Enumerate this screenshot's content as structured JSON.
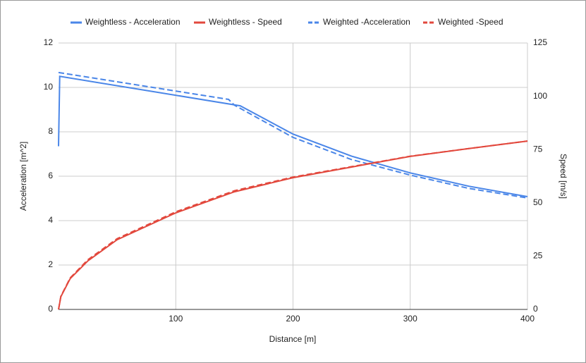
{
  "chart_data": {
    "type": "line",
    "x_label": "Distance [m]",
    "y_label": "Acceleration [m^2]",
    "y2_label": "Speed [m/s]",
    "xlim": [
      0,
      400
    ],
    "xticks": [
      100,
      200,
      300,
      400
    ],
    "ylim": [
      0,
      12
    ],
    "yticks": [
      0,
      2,
      4,
      6,
      8,
      10,
      12
    ],
    "y2lim": [
      0,
      125
    ],
    "y2ticks": [
      0,
      25,
      50,
      75,
      100,
      125
    ],
    "grid": true,
    "legend": "top",
    "series": [
      {
        "name": "Weightless - Acceleration",
        "color": "#4a86e8",
        "dash": false,
        "x": [
          0,
          1,
          155,
          200,
          250,
          300,
          350,
          400
        ],
        "values": [
          7.35,
          10.5,
          9.17,
          7.9,
          6.9,
          6.15,
          5.55,
          5.08
        ]
      },
      {
        "name": "Weightless - Speed",
        "color": "#e2483d",
        "dash": false,
        "axis": "y2",
        "x": [
          0,
          2,
          10,
          25,
          50,
          100,
          150,
          200,
          250,
          300,
          350,
          400
        ],
        "values": [
          0,
          6,
          14.5,
          22.8,
          32.7,
          45.3,
          55.2,
          61.8,
          66.8,
          71.8,
          75.5,
          79
        ]
      },
      {
        "name": "Weighted -Acceleration",
        "color": "#4a86e8",
        "dash": true,
        "x": [
          0,
          145,
          150,
          200,
          250,
          300,
          350,
          400
        ],
        "values": [
          10.67,
          9.46,
          9.2,
          7.75,
          6.75,
          6.05,
          5.45,
          5.02
        ]
      },
      {
        "name": "Weighted -Speed",
        "color": "#e2483d",
        "dash": true,
        "axis": "y2",
        "x": [
          0,
          2,
          10,
          25,
          50,
          100,
          150,
          200,
          250,
          300,
          350,
          400
        ],
        "values": [
          0,
          6.2,
          14.8,
          23.3,
          33.2,
          45.8,
          55.7,
          62.1,
          67,
          71.9,
          75.5,
          79
        ]
      }
    ]
  }
}
